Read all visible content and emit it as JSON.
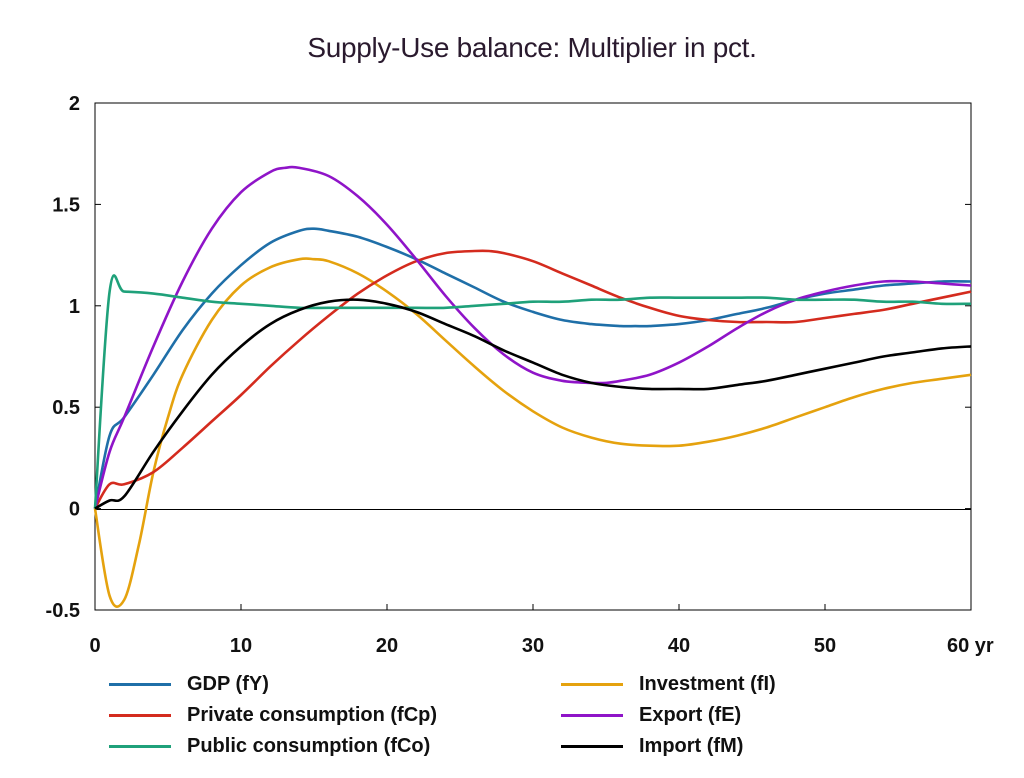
{
  "chart_data": {
    "type": "line",
    "title": "Supply-Use balance: Multiplier in pct.",
    "xlim": [
      0,
      60
    ],
    "ylim": [
      -0.5,
      2
    ],
    "x_ticks": [
      0,
      10,
      20,
      30,
      40,
      50,
      60
    ],
    "x_tick_labels": [
      "0",
      "10",
      "20",
      "30",
      "40",
      "50",
      "60 yr"
    ],
    "y_ticks": [
      -0.5,
      0,
      0.5,
      1,
      1.5,
      2
    ],
    "y_tick_labels": [
      "-0.5",
      "0",
      "0.5",
      "1",
      "1.5",
      "2"
    ],
    "zero_line": true,
    "grid": false,
    "legend_position": "bottom",
    "series": [
      {
        "name": "GDP (fY)",
        "color": "#1f6fa8",
        "x": [
          0,
          1,
          2,
          4,
          6,
          8,
          10,
          12,
          14,
          15,
          16,
          18,
          20,
          22,
          24,
          26,
          28,
          30,
          32,
          34,
          36,
          37,
          38,
          40,
          42,
          44,
          46,
          48,
          50,
          52,
          54,
          56,
          58,
          60
        ],
        "y": [
          0,
          0.36,
          0.45,
          0.66,
          0.88,
          1.06,
          1.2,
          1.31,
          1.37,
          1.38,
          1.37,
          1.34,
          1.29,
          1.23,
          1.16,
          1.09,
          1.02,
          0.97,
          0.93,
          0.91,
          0.9,
          0.9,
          0.9,
          0.91,
          0.93,
          0.96,
          0.99,
          1.03,
          1.06,
          1.08,
          1.1,
          1.11,
          1.12,
          1.12
        ]
      },
      {
        "name": "Investment (fI)",
        "color": "#e5a20e",
        "x": [
          0,
          1,
          2,
          3,
          4,
          5,
          6,
          8,
          10,
          12,
          14,
          15,
          16,
          18,
          20,
          22,
          24,
          26,
          28,
          30,
          32,
          34,
          36,
          38,
          40,
          42,
          44,
          46,
          48,
          50,
          52,
          54,
          56,
          58,
          60
        ],
        "y": [
          0,
          -0.43,
          -0.45,
          -0.18,
          0.18,
          0.45,
          0.66,
          0.93,
          1.1,
          1.19,
          1.23,
          1.23,
          1.22,
          1.16,
          1.07,
          0.96,
          0.83,
          0.7,
          0.58,
          0.48,
          0.4,
          0.35,
          0.32,
          0.31,
          0.31,
          0.33,
          0.36,
          0.4,
          0.45,
          0.5,
          0.55,
          0.59,
          0.62,
          0.64,
          0.66
        ]
      },
      {
        "name": "Private consumption (fCp)",
        "color": "#d42b1e",
        "x": [
          0,
          1,
          2,
          4,
          6,
          8,
          10,
          12,
          14,
          16,
          18,
          20,
          22,
          24,
          26,
          27,
          28,
          30,
          32,
          34,
          36,
          38,
          40,
          42,
          44,
          46,
          48,
          50,
          52,
          54,
          56,
          58,
          60
        ],
        "y": [
          0,
          0.12,
          0.12,
          0.18,
          0.3,
          0.43,
          0.56,
          0.7,
          0.83,
          0.95,
          1.06,
          1.15,
          1.22,
          1.26,
          1.27,
          1.27,
          1.26,
          1.22,
          1.16,
          1.1,
          1.04,
          0.99,
          0.95,
          0.93,
          0.92,
          0.92,
          0.92,
          0.94,
          0.96,
          0.98,
          1.01,
          1.04,
          1.07
        ]
      },
      {
        "name": "Export (fE)",
        "color": "#8f14c8",
        "x": [
          0,
          1,
          2,
          4,
          6,
          8,
          10,
          12,
          13,
          14,
          16,
          18,
          20,
          22,
          24,
          26,
          28,
          30,
          32,
          34,
          35,
          36,
          38,
          40,
          42,
          44,
          46,
          48,
          50,
          52,
          54,
          56,
          58,
          60
        ],
        "y": [
          0,
          0.28,
          0.45,
          0.8,
          1.12,
          1.38,
          1.56,
          1.66,
          1.68,
          1.68,
          1.64,
          1.54,
          1.4,
          1.23,
          1.05,
          0.89,
          0.76,
          0.67,
          0.63,
          0.62,
          0.62,
          0.63,
          0.66,
          0.72,
          0.8,
          0.89,
          0.97,
          1.03,
          1.07,
          1.1,
          1.12,
          1.12,
          1.11,
          1.1
        ]
      },
      {
        "name": "Public consumption (fCo)",
        "color": "#1fa17a",
        "x": [
          0,
          1,
          2,
          4,
          6,
          8,
          10,
          12,
          14,
          16,
          18,
          20,
          22,
          24,
          26,
          28,
          30,
          32,
          34,
          36,
          38,
          40,
          42,
          44,
          46,
          48,
          50,
          52,
          54,
          56,
          58,
          60
        ],
        "y": [
          0,
          1.07,
          1.07,
          1.06,
          1.04,
          1.02,
          1.01,
          1.0,
          0.99,
          0.99,
          0.99,
          0.99,
          0.99,
          0.99,
          1.0,
          1.01,
          1.02,
          1.02,
          1.03,
          1.03,
          1.04,
          1.04,
          1.04,
          1.04,
          1.04,
          1.03,
          1.03,
          1.03,
          1.02,
          1.02,
          1.01,
          1.01
        ]
      },
      {
        "name": "Import (fM)",
        "color": "#000000",
        "x": [
          0,
          1,
          2,
          4,
          6,
          8,
          10,
          12,
          14,
          16,
          18,
          20,
          22,
          24,
          26,
          28,
          30,
          32,
          34,
          36,
          38,
          40,
          42,
          44,
          46,
          48,
          50,
          52,
          54,
          56,
          58,
          60
        ],
        "y": [
          0,
          0.04,
          0.06,
          0.28,
          0.48,
          0.66,
          0.8,
          0.91,
          0.98,
          1.02,
          1.03,
          1.01,
          0.97,
          0.91,
          0.85,
          0.78,
          0.72,
          0.66,
          0.62,
          0.6,
          0.59,
          0.59,
          0.59,
          0.61,
          0.63,
          0.66,
          0.69,
          0.72,
          0.75,
          0.77,
          0.79,
          0.8
        ]
      }
    ]
  }
}
